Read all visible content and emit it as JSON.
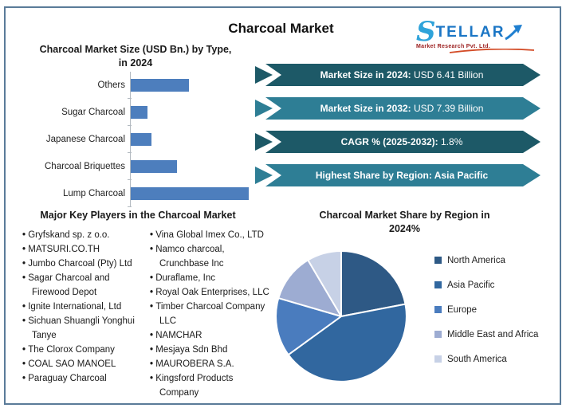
{
  "title": "Charcoal Market",
  "logo": {
    "name_s": "S",
    "name_rest": "TELLAR",
    "tagline": "Market Research Pvt. Ltd.",
    "blue": "#1b76c5",
    "red": "#9c2020"
  },
  "bar_chart_title": "Charcoal Market Size (USD Bn.) by Type, in 2024",
  "pie_chart_title": "Charcoal Market Share by Region in 2024%",
  "chart_data": [
    {
      "type": "bar",
      "orientation": "horizontal",
      "title": "Charcoal Market Size (USD Bn.) by Type, in 2024",
      "categories": [
        "Others",
        "Sugar Charcoal",
        "Japanese Charcoal",
        "Charcoal Briquettes",
        "Lump Charcoal"
      ],
      "values": [
        1.44,
        0.41,
        0.51,
        1.14,
        2.91
      ],
      "values_note": "bars unlabeled; USD Bn values estimated from bar lengths vs total 6.41",
      "xlabel": "",
      "ylabel": "",
      "color": "#4d7ebd",
      "grid": false
    },
    {
      "type": "pie",
      "title": "Charcoal Market Share by Region in 2024%",
      "labels": [
        "North America",
        "Asia Pacific",
        "Europe",
        "Middle East and Africa",
        "South America"
      ],
      "values": [
        22,
        43,
        14.5,
        12,
        8.5
      ],
      "values_note": "percent shares estimated from slice angles; slices unlabeled",
      "colors": [
        "#2e5985",
        "#31679f",
        "#4a7cbe",
        "#9dacd2",
        "#c7d1e6"
      ],
      "legend_position": "right",
      "start_angle": "12 o'clock, clockwise"
    }
  ],
  "banners": [
    {
      "bold": "Market Size in 2024:",
      "rest": " USD 6.41 Billion",
      "color": "#1d5967"
    },
    {
      "bold": "Market Size in 2032:",
      "rest": " USD 7.39 Billion",
      "color": "#2e7e95"
    },
    {
      "bold": "CAGR % (2025-2032):",
      "rest": " 1.8%",
      "color": "#1d5967"
    },
    {
      "bold": "Highest Share by Region: Asia Pacific",
      "rest": "",
      "color": "#2e7e95"
    }
  ],
  "key_players": {
    "title": "Major Key Players in the Charcoal Market",
    "left": [
      "Gryfskand sp. z o.o.",
      "MATSURI.CO.TH",
      "Jumbo Charcoal (Pty) Ltd",
      "Sagar Charcoal and Firewood Depot",
      "Ignite International, Ltd",
      "Sichuan Shuangli Yonghui Tanye",
      "The Clorox Company",
      "COAL SAO MANOEL",
      "Paraguay Charcoal"
    ],
    "right": [
      "Vina Global Imex Co., LTD",
      "Namco charcoal, Crunchbase Inc",
      "Duraflame, Inc",
      "Royal Oak Enterprises, LLC",
      "Timber Charcoal Company LLC",
      "NAMCHAR",
      "Mesjaya Sdn Bhd",
      "MAUROBERA S.A.",
      "Kingsford Products Company"
    ]
  }
}
